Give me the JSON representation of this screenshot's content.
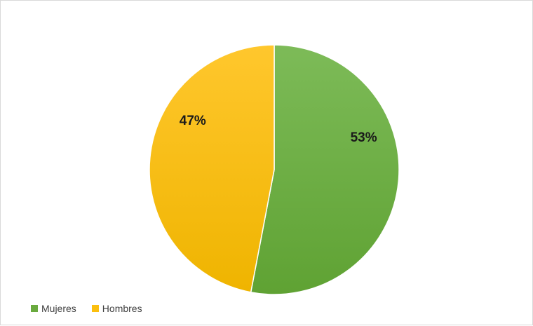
{
  "chart_data": {
    "type": "pie",
    "categories": [
      "Mujeres",
      "Hombres"
    ],
    "values": [
      53,
      47
    ],
    "labels": [
      "53%",
      "47%"
    ],
    "colors": [
      "#6aaa3f",
      "#fbbf0f"
    ],
    "start_at": "12 o'clock, clockwise",
    "legend_position": "bottom-left",
    "title": ""
  }
}
